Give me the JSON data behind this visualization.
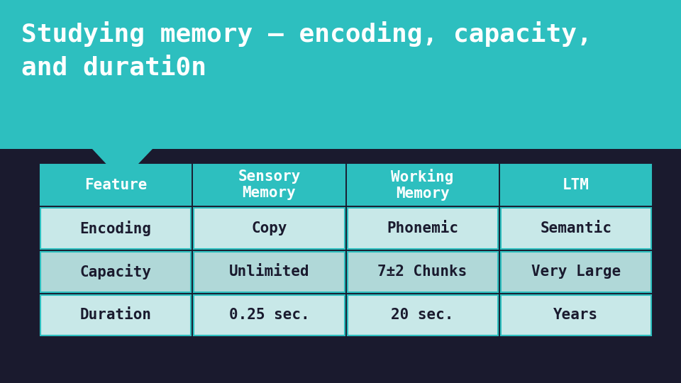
{
  "title_line1": "Studying memory – encoding, capacity,",
  "title_line2": "and durati0n",
  "title_bg_color": "#2dbfbf",
  "main_bg_color": "#1a1a2e",
  "table_header_bg": "#2dbfbf",
  "table_row_bg_odd": "#c8e8e8",
  "table_row_bg_even": "#b0d8d8",
  "table_border_color": "#2dbfbf",
  "title_text_color": "#ffffff",
  "header_text_color": "#ffffff",
  "row_text_color": "#1a1a2e",
  "headers": [
    "Feature",
    "Sensory\nMemory",
    "Working\nMemory",
    "LTM"
  ],
  "rows": [
    [
      "Encoding",
      "Copy",
      "Phonemic",
      "Semantic"
    ],
    [
      "Capacity",
      "Unlimited",
      "7±2 Chunks",
      "Very Large"
    ],
    [
      "Duration",
      "0.25 sec.",
      "20 sec.",
      "Years"
    ]
  ],
  "font_family": "monospace",
  "title_fontsize": 26,
  "header_fontsize": 15,
  "row_fontsize": 15
}
